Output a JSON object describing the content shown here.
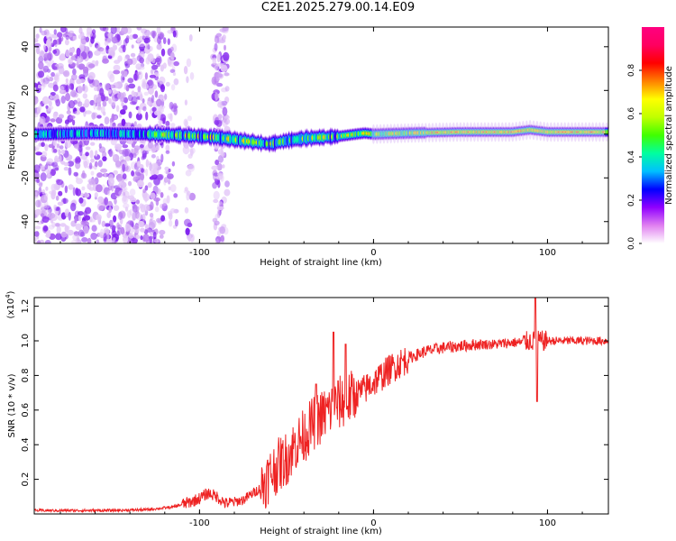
{
  "title": "C2E1.2025.279.00.14.E09",
  "colors": {
    "axis": "#000000",
    "snr_line": "#ee2222",
    "bg": "#ffffff"
  },
  "chart_data": [
    {
      "type": "heatmap",
      "xlabel": "Height of straight line (km)",
      "ylabel": "Frequency (Hz)",
      "xlim": [
        -195,
        135
      ],
      "ylim": [
        -50,
        49
      ],
      "xticks": [
        -100,
        0,
        100
      ],
      "yticks": [
        -40,
        -20,
        0,
        20,
        40
      ],
      "ridge": [
        {
          "x": -190,
          "y": 0
        },
        {
          "x": -160,
          "y": 0.5
        },
        {
          "x": -130,
          "y": 0
        },
        {
          "x": -110,
          "y": -0.5
        },
        {
          "x": -90,
          "y": -1.5
        },
        {
          "x": -70,
          "y": -3.5
        },
        {
          "x": -60,
          "y": -4.5
        },
        {
          "x": -50,
          "y": -3
        },
        {
          "x": -40,
          "y": -2
        },
        {
          "x": -20,
          "y": -1
        },
        {
          "x": -5,
          "y": 0.5
        },
        {
          "x": 0,
          "y": 0
        },
        {
          "x": 20,
          "y": 0.5
        },
        {
          "x": 50,
          "y": 1
        },
        {
          "x": 80,
          "y": 1
        },
        {
          "x": 90,
          "y": 2
        },
        {
          "x": 100,
          "y": 1
        },
        {
          "x": 135,
          "y": 1
        }
      ],
      "colorbar": {
        "label": "Normalized spectral amplitude",
        "range": [
          0,
          1
        ],
        "ticks": [
          0.0,
          0.2,
          0.4,
          0.6,
          0.8
        ],
        "tick_labels": [
          "0.0",
          "0.2",
          "0.4",
          "0.6",
          "0.8"
        ],
        "colormap": [
          "#ffffff",
          "#e080f0",
          "#9000ff",
          "#0000ff",
          "#00c0ff",
          "#00ffa0",
          "#40ff00",
          "#c0ff00",
          "#ffff00",
          "#ff8000",
          "#ff0000",
          "#ff0060",
          "#ff0080"
        ]
      }
    },
    {
      "type": "line",
      "xlabel": "Height of straight line (km)",
      "ylabel": "SNR (10 * v/v)",
      "scale_label": "(x10",
      "scale_exp": "4",
      "scale_close": ")",
      "xlim": [
        -195,
        135
      ],
      "ylim": [
        0,
        1.25
      ],
      "xticks": [
        -100,
        0,
        100
      ],
      "yticks": [
        0.2,
        0.4,
        0.6,
        0.8,
        1.0,
        1.2
      ],
      "ytick_labels": [
        "0.2",
        "0.4",
        "0.6",
        "0.8",
        "1.0",
        "1.2"
      ],
      "series": [
        {
          "name": "SNR",
          "x": [
            -195,
            -170,
            -150,
            -130,
            -115,
            -105,
            -100,
            -95,
            -90,
            -85,
            -75,
            -65,
            -60,
            -55,
            -50,
            -45,
            -40,
            -35,
            -30,
            -25,
            -20,
            -15,
            -10,
            -5,
            0,
            10,
            20,
            30,
            40,
            50,
            60,
            70,
            80,
            85,
            90,
            95,
            100,
            110,
            120,
            135
          ],
          "y": [
            0.02,
            0.02,
            0.02,
            0.025,
            0.04,
            0.07,
            0.09,
            0.12,
            0.1,
            0.06,
            0.08,
            0.15,
            0.22,
            0.28,
            0.32,
            0.4,
            0.45,
            0.52,
            0.56,
            0.6,
            0.64,
            0.66,
            0.69,
            0.72,
            0.76,
            0.84,
            0.9,
            0.94,
            0.96,
            0.97,
            0.98,
            0.98,
            0.99,
            0.99,
            1.0,
            1.0,
            1.0,
            1.0,
            1.0,
            1.0
          ]
        }
      ],
      "spikes": [
        {
          "x": -33,
          "y": 0.75
        },
        {
          "x": -23,
          "y": 1.05
        },
        {
          "x": -16,
          "y": 0.98
        },
        {
          "x": 93,
          "y": 1.25
        },
        {
          "x": 94,
          "y": 0.65
        }
      ]
    }
  ]
}
